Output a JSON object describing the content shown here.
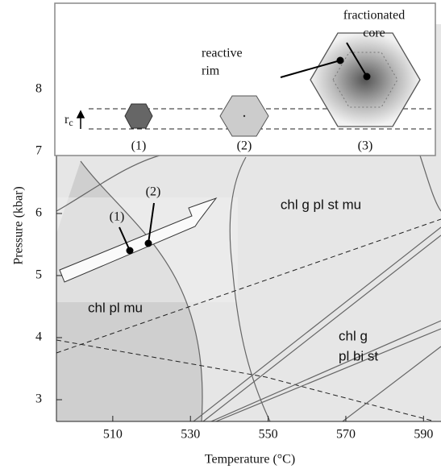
{
  "chart_data": {
    "type": "phase-diagram",
    "x_label": "Temperature (°C)",
    "y_label": "Pressure (kbar)",
    "xlim": [
      495.5,
      594.5
    ],
    "ylim": [
      2.65,
      9.05
    ],
    "xticks": [
      510,
      530,
      550,
      570,
      590
    ],
    "yticks": [
      3,
      4,
      5,
      6,
      7,
      8
    ],
    "field_labels": {
      "upper": "chl g pl st mu",
      "lower_left": "chl pl mu",
      "right": [
        "chl g",
        "pl bi st"
      ]
    },
    "path_points": [
      "(1)",
      "(2)"
    ],
    "inset": {
      "core_label": [
        "fractionated",
        "core"
      ],
      "rim_label": [
        "reactive",
        "rim"
      ],
      "radius_label": {
        "base": "r",
        "sub": "c"
      },
      "stages": [
        "(1)",
        "(2)",
        "(3)"
      ]
    }
  }
}
